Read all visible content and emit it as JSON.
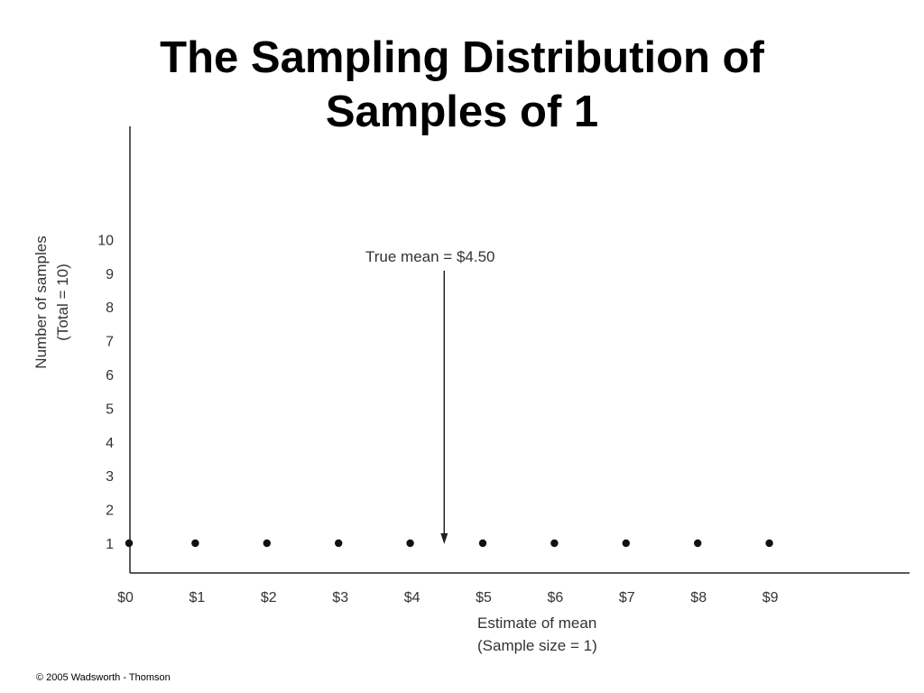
{
  "slide": {
    "title_line1": "The Sampling Distribution of",
    "title_line2": "Samples of 1",
    "copyright": "© 2005 Wadsworth - Thomson"
  },
  "chart_data": {
    "type": "scatter",
    "ylabel_line1": "Number of samples",
    "ylabel_line2": "(Total = 10)",
    "xlabel_line1": "Estimate of mean",
    "xlabel_line2": "(Sample size = 1)",
    "x_categories": [
      "$0",
      "$1",
      "$2",
      "$3",
      "$4",
      "$5",
      "$6",
      "$7",
      "$8",
      "$9"
    ],
    "y_ticks": [
      1,
      2,
      3,
      4,
      5,
      6,
      7,
      8,
      9,
      10
    ],
    "points": [
      {
        "x": 0,
        "y": 1
      },
      {
        "x": 1,
        "y": 1
      },
      {
        "x": 2,
        "y": 1
      },
      {
        "x": 3,
        "y": 1
      },
      {
        "x": 4,
        "y": 1
      },
      {
        "x": 5,
        "y": 1
      },
      {
        "x": 6,
        "y": 1
      },
      {
        "x": 7,
        "y": 1
      },
      {
        "x": 8,
        "y": 1
      },
      {
        "x": 9,
        "y": 1
      }
    ],
    "annotation": {
      "text": "True mean  =  $4.50",
      "x": 4.5
    },
    "colors": {
      "axis": "#222222",
      "text": "#333333",
      "point": "#111111"
    }
  }
}
